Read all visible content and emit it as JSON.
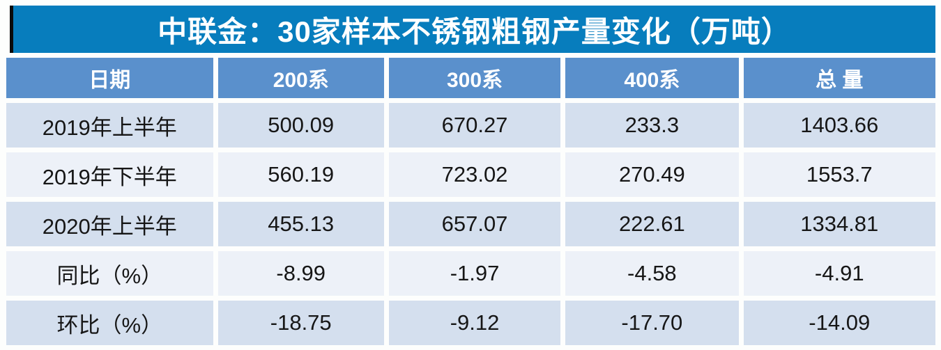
{
  "title": "中联金：30家样本不锈钢粗钢产量变化（万吨）",
  "table": {
    "columns": [
      "日期",
      "200系",
      "300系",
      "400系",
      "总 量"
    ],
    "rows": [
      {
        "label": "2019年上半年",
        "values": [
          "500.09",
          "670.27",
          "233.3",
          "1403.66"
        ]
      },
      {
        "label": "2019年下半年",
        "values": [
          "560.19",
          "723.02",
          "270.49",
          "1553.7"
        ]
      },
      {
        "label": "2020年上半年",
        "values": [
          "455.13",
          "657.07",
          "222.61",
          "1334.81"
        ]
      },
      {
        "label": "同比（%）",
        "values": [
          "-8.99",
          "-1.97",
          "-4.58",
          "-4.91"
        ]
      },
      {
        "label": "环比（%）",
        "values": [
          "-18.75",
          "-9.12",
          "-17.70",
          "-14.09"
        ]
      }
    ]
  },
  "colors": {
    "title_bar_bg": "#077dbd",
    "title_accent_bar": "#0b0b0b",
    "header_bg": "#5a90cc",
    "header_text": "#ffffff",
    "row_odd_bg": "#d4dfee",
    "row_even_bg": "#edf1f8",
    "cell_text": "#161616"
  },
  "chart_data": {
    "type": "table",
    "title": "中联金：30家样本不锈钢粗钢产量变化（万吨）",
    "columns": [
      "日期",
      "200系",
      "300系",
      "400系",
      "总量"
    ],
    "rows": [
      [
        "2019年上半年",
        500.09,
        670.27,
        233.3,
        1403.66
      ],
      [
        "2019年下半年",
        560.19,
        723.02,
        270.49,
        1553.7
      ],
      [
        "2020年上半年",
        455.13,
        657.07,
        222.61,
        1334.81
      ],
      [
        "同比（%）",
        -8.99,
        -1.97,
        -4.58,
        -4.91
      ],
      [
        "环比（%）",
        -18.75,
        -9.12,
        -17.7,
        -14.09
      ]
    ],
    "units": "万吨",
    "notes": "同比/环比 rows are percent changes"
  }
}
